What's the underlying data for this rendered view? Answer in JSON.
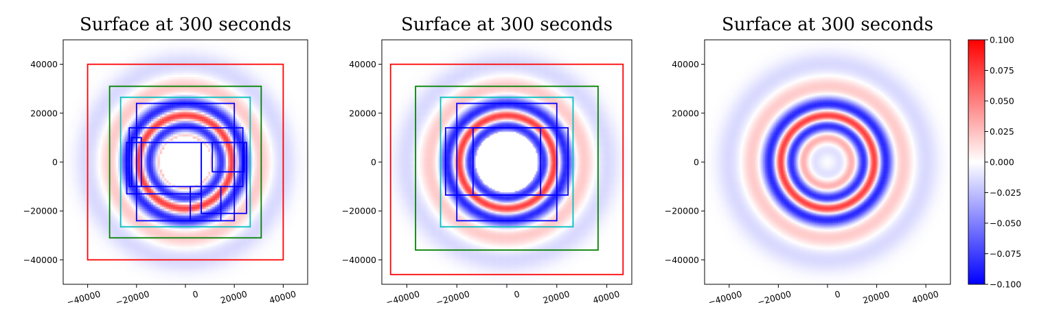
{
  "chart_data": [
    {
      "type": "heatmap",
      "title": "Surface at 300 seconds",
      "xlim": [
        -50000,
        50000
      ],
      "ylim": [
        -50000,
        50000
      ],
      "xticks": [
        -40000,
        -20000,
        0,
        20000,
        40000
      ],
      "yticks": [
        -40000,
        -20000,
        0,
        20000,
        40000
      ],
      "xtick_labels": [
        "−40000",
        "−20000",
        "0",
        "20000",
        "40000"
      ],
      "ytick_labels": [
        "−40000",
        "−20000",
        "0",
        "20000",
        "40000"
      ],
      "field": "concentric surface waves, red ring at r≈19000, dry/blank center r<~10000",
      "resolution": "coarse",
      "boxes": [
        {
          "color": "#ff0000",
          "x": [
            -40000,
            40000
          ],
          "y": [
            -40000,
            40000
          ]
        },
        {
          "color": "#008000",
          "x": [
            -31000,
            31000
          ],
          "y": [
            -31000,
            31000
          ]
        },
        {
          "color": "#00bfbf",
          "x": [
            -26500,
            26500
          ],
          "y": [
            -26500,
            26500
          ]
        },
        {
          "color": "#0000ff",
          "x": [
            -20000,
            20000
          ],
          "y": [
            -24000,
            24000
          ]
        },
        {
          "color": "#0000ff",
          "x": [
            -23000,
            23500
          ],
          "y": [
            -10000,
            14000
          ]
        },
        {
          "color": "#0000ff",
          "x": [
            -24000,
            6500
          ],
          "y": [
            -13000,
            8000
          ]
        },
        {
          "color": "#0000ff",
          "x": [
            -22000,
            -18000
          ],
          "y": [
            -10000,
            10000
          ]
        },
        {
          "color": "#0000ff",
          "x": [
            2000,
            14500
          ],
          "y": [
            -24000,
            -10000
          ]
        },
        {
          "color": "#0000ff",
          "x": [
            6500,
            25000
          ],
          "y": [
            -21000,
            8000
          ]
        },
        {
          "color": "#0000ff",
          "x": [
            11000,
            24000
          ],
          "y": [
            -4000,
            8000
          ]
        }
      ]
    },
    {
      "type": "heatmap",
      "title": "Surface at 300 seconds",
      "xlim": [
        -50000,
        50000
      ],
      "ylim": [
        -50000,
        50000
      ],
      "xticks": [
        -40000,
        -20000,
        0,
        20000,
        40000
      ],
      "yticks": [
        -40000,
        -20000,
        0,
        20000,
        40000
      ],
      "xtick_labels": [
        "−40000",
        "−20000",
        "0",
        "20000",
        "40000"
      ],
      "ytick_labels": [
        "−40000",
        "−20000",
        "0",
        "20000",
        "40000"
      ],
      "field": "concentric surface waves, red ring at r≈19000, dry/blank center r<~13000",
      "resolution": "medium",
      "boxes": [
        {
          "color": "#ff0000",
          "x": [
            -46500,
            46500
          ],
          "y": [
            -46000,
            40000
          ]
        },
        {
          "color": "#008000",
          "x": [
            -36500,
            36500
          ],
          "y": [
            -36000,
            31000
          ]
        },
        {
          "color": "#00bfbf",
          "x": [
            -26500,
            26500
          ],
          "y": [
            -26500,
            26500
          ]
        },
        {
          "color": "#0000ff",
          "x": [
            -20000,
            20000
          ],
          "y": [
            -24000,
            24000
          ]
        },
        {
          "color": "#0000ff",
          "x": [
            -24500,
            24500
          ],
          "y": [
            -13500,
            14000
          ]
        },
        {
          "color": "#0000ff",
          "x": [
            -13500,
            13500
          ],
          "y": [
            -13500,
            14000
          ]
        }
      ]
    },
    {
      "type": "heatmap",
      "title": "Surface at 300 seconds",
      "xlim": [
        -50000,
        50000
      ],
      "ylim": [
        -50000,
        50000
      ],
      "xticks": [
        -40000,
        -20000,
        0,
        20000,
        40000
      ],
      "yticks": [
        -40000,
        -20000,
        0,
        20000,
        40000
      ],
      "xtick_labels": [
        "−40000",
        "−20000",
        "0",
        "20000",
        "40000"
      ],
      "ytick_labels": [
        "−40000",
        "−20000",
        "0",
        "20000",
        "40000"
      ],
      "field": "concentric surface waves, red ring at r≈19000, full field resolved",
      "resolution": "fine",
      "boxes": []
    }
  ],
  "colorbar": {
    "colormap": "bwr",
    "vmin": -0.1,
    "vmax": 0.1,
    "ticks": [
      0.1,
      0.075,
      0.05,
      0.025,
      0.0,
      -0.025,
      -0.05,
      -0.075,
      -0.1
    ],
    "tick_labels": [
      "0.100",
      "0.075",
      "0.050",
      "0.025",
      "0.000",
      "−0.025",
      "−0.050",
      "−0.075",
      "−0.100"
    ]
  },
  "colors": {
    "min": "#0000ff",
    "mid": "#ffffff",
    "max": "#ff0000"
  }
}
